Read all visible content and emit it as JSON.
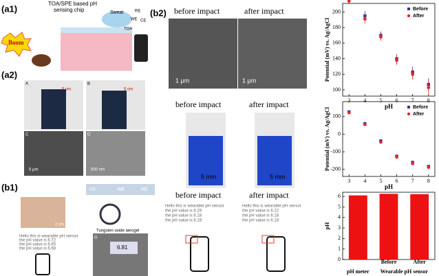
{
  "panels": {
    "a1": {
      "label": "(a1)",
      "title": [
        "TOA/SPE based pH",
        "sensing chip"
      ],
      "sweat": "Sweat",
      "electrodes": [
        "RE",
        "WE",
        "CE"
      ],
      "toa": "TOA",
      "boom": "Boom"
    },
    "a2": {
      "label": "(a2)",
      "photos": [
        "A",
        "B",
        "C",
        "D"
      ],
      "scales": [
        "5 cm",
        "5 cm",
        "5 μm",
        "500 nm"
      ]
    },
    "b1": {
      "label": "(b1)",
      "electrodes": [
        "CE",
        "WE",
        "RE"
      ],
      "aerogel": "Tungsten oxide aerogel",
      "scale": "2 cm",
      "screen": [
        "Hello this is wearable pH sensor",
        "the pH value is 6.72",
        "the pH value is 6.65",
        "the pH value is 6.68"
      ],
      "meter_label": "G",
      "meter_reading": "6.81"
    },
    "b2": {
      "label": "(b2)",
      "headings": [
        "before impact",
        "after impact"
      ],
      "sem_scales": [
        "1 μm",
        "1 μm"
      ],
      "sensor_headings": [
        "before impact",
        "after impact"
      ],
      "sensor_scales": [
        "5 mm",
        "5 mm"
      ],
      "phone_headings": [
        "before impact",
        "after impact"
      ],
      "screens": [
        [
          "Hello this is wearable pH sensor",
          "the pH value is 6.29",
          "the pH value is 6.18",
          "the pH value is 6.18"
        ],
        [
          "Hello this is wearable pH sensor",
          "the pH value is 6.22",
          "the pH value is 6.18",
          "the pH value is 6.18"
        ]
      ]
    }
  },
  "chart_data": [
    {
      "type": "scatter",
      "xlabel": "pH",
      "ylabel": "Potential (mV) vs. Ag/AgCl",
      "x": [
        3,
        4,
        5,
        6,
        7,
        8
      ],
      "xlim": [
        2.6,
        8.4
      ],
      "xticks": [
        3,
        4,
        5,
        6,
        7,
        8
      ],
      "ylim": [
        92,
        211
      ],
      "yticks": [
        100,
        120,
        140,
        160,
        180,
        200
      ],
      "legend": "upper right",
      "series": [
        {
          "name": "Before",
          "color": "#2b3a8c",
          "marker": "square",
          "values": [
            218,
            195,
            170,
            140,
            123,
            107
          ],
          "errors": [
            4,
            6,
            5,
            6,
            7,
            8
          ]
        },
        {
          "name": "After",
          "color": "#e8262a",
          "marker": "circle",
          "values": [
            214,
            191,
            168,
            138,
            120,
            103
          ],
          "errors": [
            4,
            6,
            5,
            6,
            7,
            10
          ]
        }
      ]
    },
    {
      "type": "scatter",
      "xlabel": "pH",
      "ylabel": "Potential (mV) vs. Ag/AgCl",
      "x": [
        3,
        4,
        5,
        6,
        7,
        8
      ],
      "xlim": [
        2.6,
        8.4
      ],
      "xticks": [
        3,
        4,
        5,
        6,
        7,
        8
      ],
      "ylim": [
        -240,
        185
      ],
      "yticks": [
        -200,
        -100,
        0,
        100
      ],
      "legend": "upper right",
      "series": [
        {
          "name": "Before",
          "color": "#2b3a8c",
          "marker": "square",
          "values": [
            127,
            60,
            -38,
            -125,
            -160,
            -183
          ],
          "errors": [
            6,
            6,
            6,
            6,
            8,
            6
          ]
        },
        {
          "name": "After",
          "color": "#e8262a",
          "marker": "circle",
          "values": [
            122,
            55,
            -45,
            -130,
            -167,
            -188
          ],
          "errors": [
            6,
            6,
            6,
            6,
            8,
            6
          ]
        }
      ]
    },
    {
      "type": "bar",
      "ylabel": "pH",
      "categories": [
        "pH meter",
        "Before",
        "After"
      ],
      "group_label": "Wearable pH sensor",
      "values": [
        6.1,
        6.25,
        6.22
      ],
      "color": "#ee1111",
      "ylim": [
        0,
        6.4
      ],
      "yticks": [
        0,
        1,
        2,
        3,
        4,
        5,
        6
      ]
    }
  ]
}
